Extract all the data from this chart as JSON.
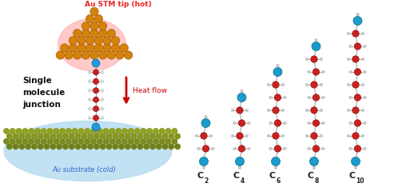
{
  "bg_color": "#ffffff",
  "fig_w": 4.93,
  "fig_h": 2.34,
  "dpi": 100,
  "left_panel": {
    "stm_tip_label": "Au STM tip (hot)",
    "stm_tip_label_color": "#ee2222",
    "junction_label": "Single\nmolecule\njunction",
    "junction_label_color": "#111111",
    "heat_flow_label": "Heat flow",
    "heat_flow_color": "#cc0000",
    "substrate_label": "Au substrate (cold)",
    "substrate_label_color": "#3366cc",
    "tip_color": "#d4820a",
    "tip_edge_color": "#a05800",
    "tip_glow_color": "#ffb8b8",
    "substrate_color": "#8a9a20",
    "substrate_edge_color": "#6a7a10",
    "blue_atom_color": "#2299dd",
    "blue_atom_edge": "#1166aa",
    "red_atom_color": "#cc2222",
    "red_atom_edge": "#881111",
    "h_atom_color": "#dddddd",
    "h_atom_edge": "#aaaaaa",
    "bond_color": "#aaaaaa"
  },
  "right_panel": {
    "blue_atom_color": "#1a9dcc",
    "blue_atom_edge": "#0d6688",
    "red_atom_color": "#cc2020",
    "red_atom_edge": "#881111",
    "h_atom_color": "#cccccc",
    "h_atom_edge": "#999999",
    "bond_color": "#aaaaaa",
    "label_color": "#222222"
  },
  "molecule_n_carbons": [
    2,
    4,
    6,
    8,
    10
  ],
  "label_subscripts": [
    "2",
    "4",
    "6",
    "8",
    "10"
  ]
}
